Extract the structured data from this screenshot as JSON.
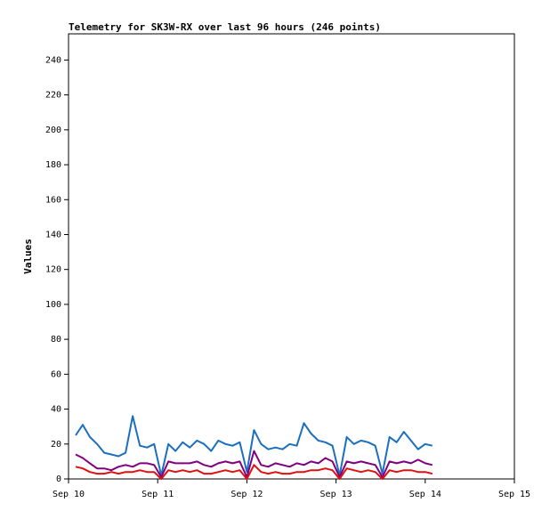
{
  "chart_data": {
    "type": "line",
    "title": "Telemetry for SK3W-RX over last 96 hours (246 points)",
    "y_label": "Values",
    "x": [
      10.08,
      10.16,
      10.24,
      10.32,
      10.4,
      10.48,
      10.56,
      10.64,
      10.72,
      10.8,
      10.88,
      10.96,
      11.04,
      11.12,
      11.2,
      11.28,
      11.36,
      11.44,
      11.52,
      11.6,
      11.68,
      11.76,
      11.84,
      11.92,
      12.0,
      12.08,
      12.16,
      12.24,
      12.32,
      12.4,
      12.48,
      12.56,
      12.64,
      12.72,
      12.8,
      12.88,
      12.96,
      13.04,
      13.12,
      13.2,
      13.28,
      13.36,
      13.44,
      13.52,
      13.6,
      13.68,
      13.76,
      13.84,
      13.92,
      14.0,
      14.08
    ],
    "series": [
      {
        "color": "#1a6fc0",
        "values": [
          25,
          31,
          24,
          20,
          15,
          14,
          13,
          15,
          36,
          19,
          18,
          20,
          2,
          20,
          16,
          21,
          18,
          22,
          20,
          16,
          22,
          20,
          19,
          21,
          4,
          28,
          20,
          17,
          18,
          17,
          20,
          19,
          32,
          26,
          22,
          21,
          19,
          2,
          24,
          20,
          22,
          21,
          19,
          3,
          24,
          21,
          27,
          22,
          17,
          20,
          19
        ]
      },
      {
        "color": "#800080",
        "values": [
          14,
          12,
          9,
          6,
          6,
          5,
          7,
          8,
          7,
          9,
          9,
          8,
          1,
          10,
          9,
          9,
          9,
          10,
          8,
          7,
          9,
          10,
          9,
          10,
          1,
          16,
          8,
          7,
          9,
          8,
          7,
          9,
          8,
          10,
          9,
          12,
          10,
          1,
          10,
          9,
          10,
          9,
          8,
          1,
          10,
          9,
          10,
          9,
          11,
          9,
          8
        ]
      },
      {
        "color": "#e01010",
        "values": [
          7,
          6,
          4,
          3,
          3,
          4,
          3,
          4,
          4,
          5,
          4,
          4,
          0,
          5,
          4,
          5,
          4,
          5,
          3,
          3,
          4,
          5,
          4,
          5,
          0,
          8,
          4,
          3,
          4,
          3,
          3,
          4,
          4,
          5,
          5,
          6,
          5,
          0,
          6,
          5,
          4,
          5,
          4,
          0,
          5,
          4,
          5,
          5,
          4,
          4,
          3
        ]
      }
    ],
    "xlim": [
      10,
      15
    ],
    "xticks": [
      {
        "value": 10,
        "label": "Sep 10"
      },
      {
        "value": 11,
        "label": "Sep 11"
      },
      {
        "value": 12,
        "label": "Sep 12"
      },
      {
        "value": 13,
        "label": "Sep 13"
      },
      {
        "value": 14,
        "label": "Sep 14"
      },
      {
        "value": 15,
        "label": "Sep 15"
      }
    ],
    "ylim": [
      0,
      255
    ],
    "yticks": [
      0,
      20,
      40,
      60,
      80,
      100,
      120,
      140,
      160,
      180,
      200,
      220,
      240
    ]
  }
}
